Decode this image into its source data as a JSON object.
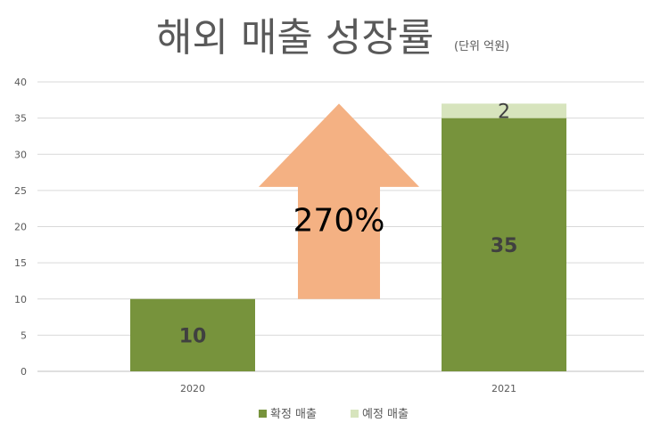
{
  "chart_data": {
    "type": "bar",
    "stacked": true,
    "title": "해외 매출 성장률",
    "title_unit": "(단위 억원)",
    "categories": [
      "2020",
      "2021"
    ],
    "series": [
      {
        "name": "확정 매출",
        "values": [
          10,
          35
        ],
        "color": "#77933C"
      },
      {
        "name": "예정 매출",
        "values": [
          0,
          2
        ],
        "color": "#D7E4BD"
      }
    ],
    "ylim": [
      0,
      40
    ],
    "yticks": [
      0,
      5,
      10,
      15,
      20,
      25,
      30,
      35,
      40
    ],
    "grid": true,
    "legend": "bottom",
    "annotation": {
      "text": "270%",
      "arrow_color": "#F4B183"
    }
  }
}
